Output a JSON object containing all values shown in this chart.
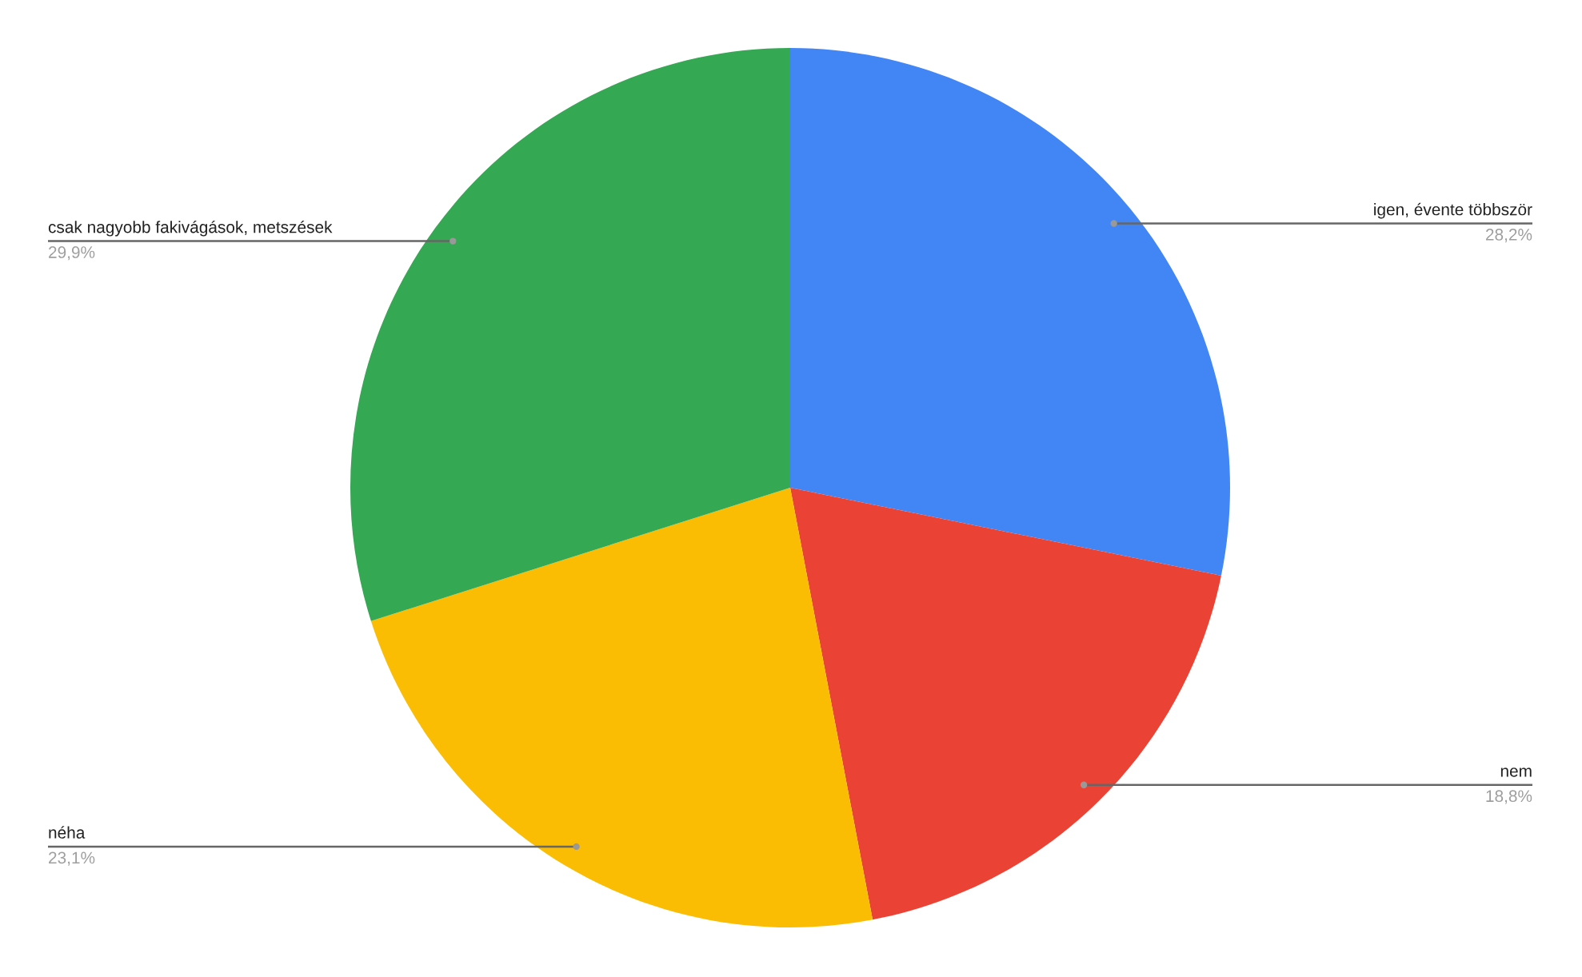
{
  "chart_data": {
    "type": "pie",
    "categories": [
      "igen, évente többször",
      "nem",
      "néha",
      "csak nagyobb fakivágások, metszések"
    ],
    "values": [
      28.2,
      18.8,
      23.1,
      29.9
    ],
    "colors": [
      "#4285f4",
      "#ea4335",
      "#fbbc04",
      "#34a853"
    ],
    "value_labels": [
      "28,2%",
      "18,8%",
      "23,1%",
      "29,9%"
    ]
  }
}
